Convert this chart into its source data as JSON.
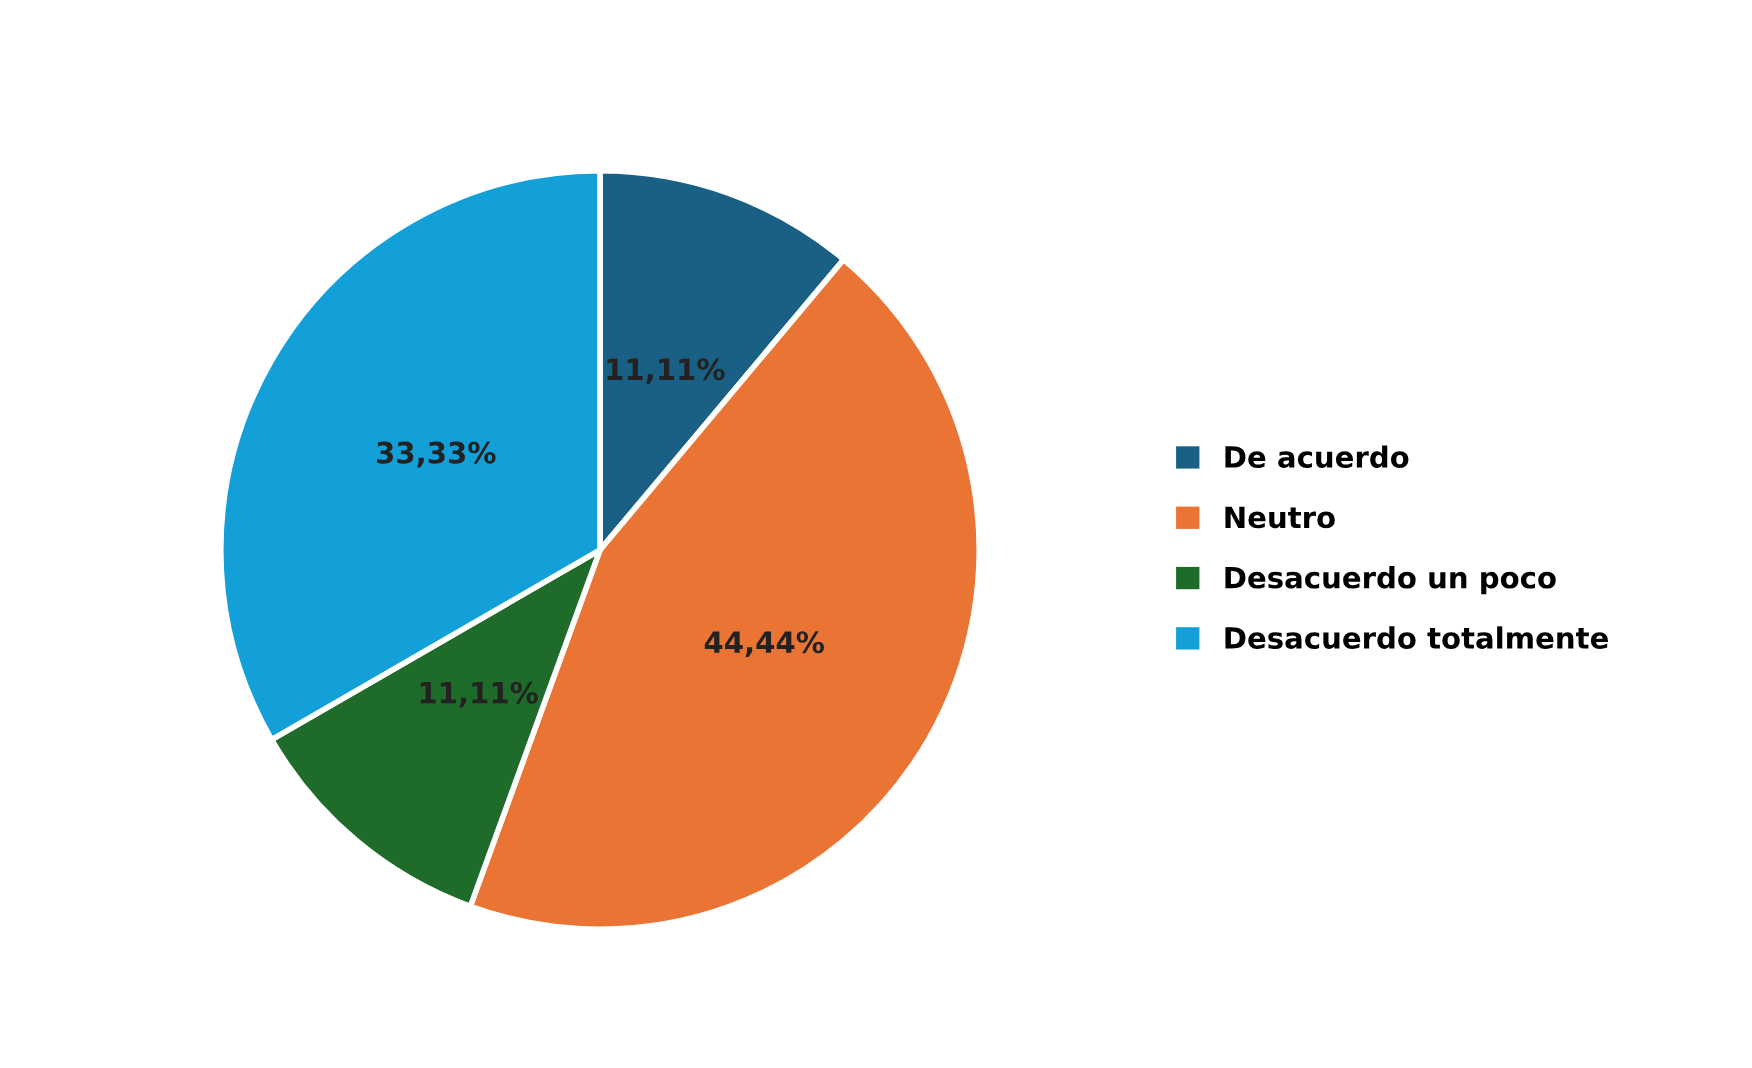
{
  "chart_data": {
    "type": "pie",
    "categories": [
      "De acuerdo",
      "Neutro",
      "Desacuerdo un poco",
      "Desacuerdo totalmente"
    ],
    "values": [
      11.11,
      44.44,
      11.11,
      33.33
    ],
    "value_labels": [
      "11,11%",
      "44,44%",
      "11,11%",
      "33,33%"
    ],
    "colors": [
      "#1a5f84",
      "#ea7434",
      "#1e6b2a",
      "#139fd8"
    ],
    "legend": "right"
  }
}
